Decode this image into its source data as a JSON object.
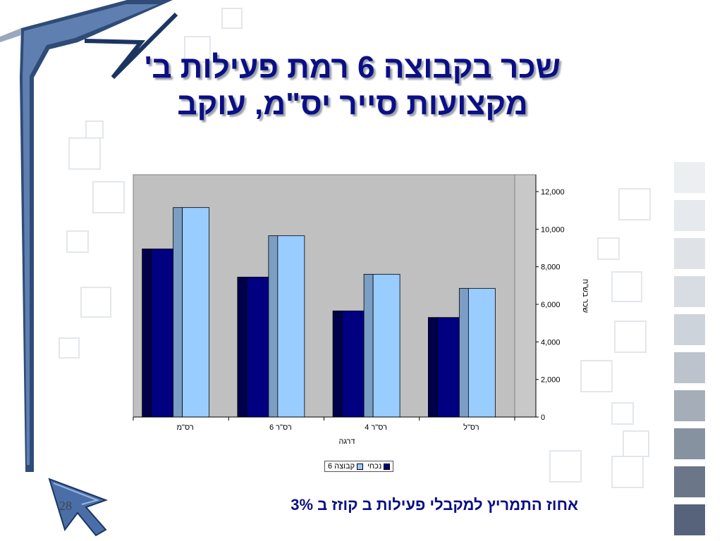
{
  "slide": {
    "title_line1": "שכר בקבוצה 6 רמת פעילות ב'",
    "title_line2": "מקצועות סייר יס\"מ, עוקב",
    "bottom_note": "אחוז התמריץ למקבלי פעילות ב קוזז ב 3%",
    "page_number": "28"
  },
  "colors": {
    "title": "#0b0f85",
    "plot_bg": "#c0c0c0",
    "current": "#000080",
    "current_side": "#00004a",
    "group6": "#99ccff",
    "group6_side": "#7b9fc4"
  },
  "chart_data": {
    "type": "bar",
    "categories": [
      "רס\"ל",
      "רס\"ר 4",
      "רס\"ר 6",
      "רס\"מ"
    ],
    "series": [
      {
        "name": "נכחי",
        "values": [
          5300,
          5650,
          7450,
          8950
        ]
      },
      {
        "name": "קבוצה 6",
        "values": [
          6850,
          7600,
          9650,
          11150
        ]
      }
    ],
    "xlabel": "דרגה",
    "ylabel": "שכר בש\"ח",
    "ylim": [
      0,
      12000
    ],
    "yticks": [
      "0",
      "2,000",
      "4,000",
      "6,000",
      "8,000",
      "10,000",
      "12,000"
    ],
    "ytick_values": [
      0,
      2000,
      4000,
      6000,
      8000,
      10000,
      12000
    ],
    "y_axis_side": "right",
    "category_order": "right-to-left",
    "legend": "bottom",
    "grid": false
  }
}
